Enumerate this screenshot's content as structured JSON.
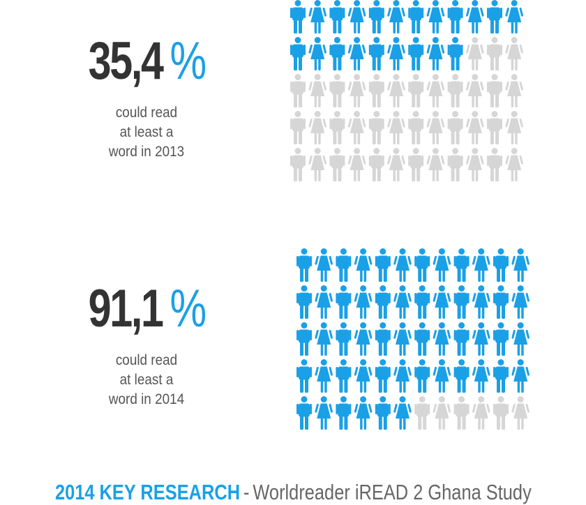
{
  "colors": {
    "accent": "#1aa0e6",
    "inactive": "#d6d6d6",
    "text_dark": "#333333",
    "text_mid": "#555555"
  },
  "stats": [
    {
      "number": "35,4",
      "percent_sign": "%",
      "caption_lines": [
        "could read",
        "at least a",
        "word in 2013"
      ]
    },
    {
      "number": "91,1",
      "percent_sign": "%",
      "caption_lines": [
        "could read",
        "at least a",
        "word in 2014"
      ]
    }
  ],
  "footer": {
    "strong": "2014 KEY RESEARCH",
    "separator": "-",
    "rest": "Worldreader iREAD 2 Ghana Study"
  },
  "chart_data": [
    {
      "type": "pictogram",
      "icon_pattern": [
        "male-icon",
        "female-icon"
      ],
      "rows": 5,
      "columns": 12,
      "total_icons": 60,
      "filled_icons": 21,
      "value_percent": 35.4,
      "year": 2013,
      "fill_color": "#1aa0e6",
      "empty_color": "#d6d6d6"
    },
    {
      "type": "pictogram",
      "icon_pattern": [
        "male-icon",
        "female-icon"
      ],
      "rows": 5,
      "columns": 12,
      "total_icons": 60,
      "filled_icons": 54,
      "value_percent": 91.1,
      "year": 2014,
      "fill_color": "#1aa0e6",
      "empty_color": "#d6d6d6"
    }
  ]
}
